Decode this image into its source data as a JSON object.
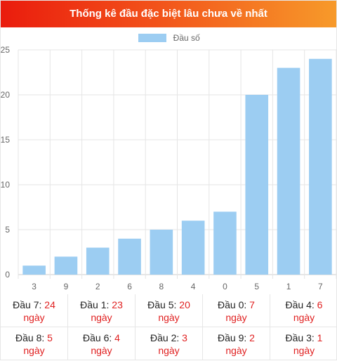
{
  "header": {
    "title": "Thống kê đầu đặc biệt lâu chưa về nhất"
  },
  "chart_data": {
    "type": "bar",
    "title": "Thống kê đầu đặc biệt lâu chưa về nhất",
    "categories": [
      "3",
      "9",
      "2",
      "6",
      "8",
      "4",
      "0",
      "5",
      "1",
      "7"
    ],
    "series": [
      {
        "name": "Đầu số",
        "values": [
          1,
          2,
          3,
          4,
          5,
          6,
          7,
          20,
          23,
          24
        ]
      }
    ],
    "ylim": [
      0,
      25
    ],
    "yticks": [
      0,
      5,
      10,
      15,
      20,
      25
    ],
    "grid": true,
    "legend": "top-center",
    "bar_color": "#9ccdf2"
  },
  "stats": [
    {
      "label": "Đầu 7:",
      "value": "24",
      "unit": "ngày"
    },
    {
      "label": "Đầu 1:",
      "value": "23",
      "unit": "ngày"
    },
    {
      "label": "Đầu 5:",
      "value": "20",
      "unit": "ngày"
    },
    {
      "label": "Đầu 0:",
      "value": "7",
      "unit": "ngày"
    },
    {
      "label": "Đầu 4:",
      "value": "6",
      "unit": "ngày"
    },
    {
      "label": "Đầu 8:",
      "value": "5",
      "unit": "ngày"
    },
    {
      "label": "Đầu 6:",
      "value": "4",
      "unit": "ngày"
    },
    {
      "label": "Đầu 2:",
      "value": "3",
      "unit": "ngày"
    },
    {
      "label": "Đầu 9:",
      "value": "2",
      "unit": "ngày"
    },
    {
      "label": "Đầu 3:",
      "value": "1",
      "unit": "ngày"
    }
  ]
}
